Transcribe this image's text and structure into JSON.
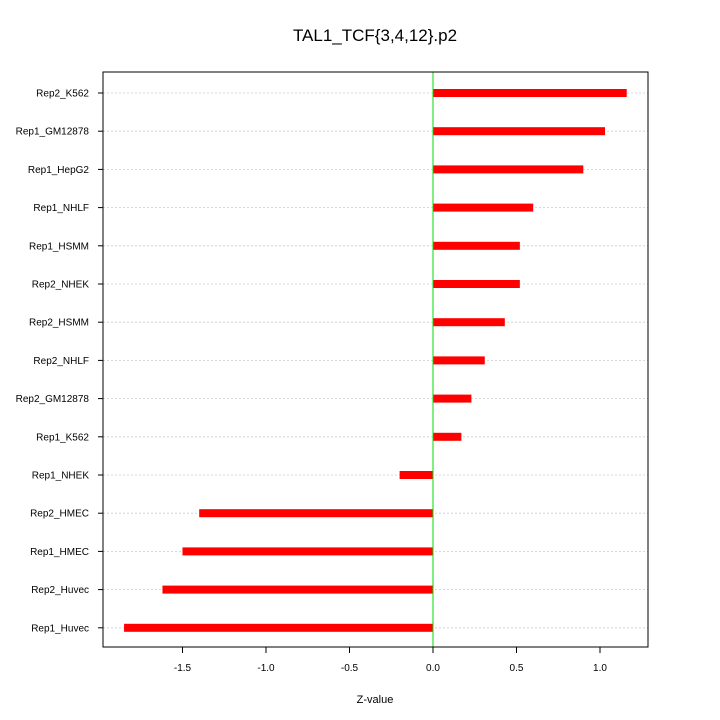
{
  "chart_data": {
    "type": "bar",
    "orientation": "horizontal",
    "title": "TAL1_TCF{3,4,12}.p2",
    "xlabel": "Z-value",
    "ylabel": "",
    "xlim": [
      -1.95,
      1.28
    ],
    "x_ticks": [
      -1.5,
      -1.0,
      -0.5,
      0.0,
      0.5,
      1.0
    ],
    "x_tick_labels": [
      "-1.5",
      "-1.0",
      "-0.5",
      "0.0",
      "0.5",
      "1.0"
    ],
    "categories": [
      "Rep2_K562",
      "Rep1_GM12878",
      "Rep1_HepG2",
      "Rep1_NHLF",
      "Rep1_HSMM",
      "Rep2_NHEK",
      "Rep2_HSMM",
      "Rep2_NHLF",
      "Rep2_GM12878",
      "Rep1_K562",
      "Rep1_NHEK",
      "Rep2_HMEC",
      "Rep1_HMEC",
      "Rep2_Huvec",
      "Rep1_Huvec"
    ],
    "values": [
      1.16,
      1.03,
      0.9,
      0.6,
      0.52,
      0.52,
      0.43,
      0.31,
      0.23,
      0.17,
      -0.2,
      -1.4,
      -1.5,
      -1.62,
      -1.85
    ],
    "bar_color": "#ff0000",
    "zero_line_color": "#00dd00",
    "grid": "horizontal dotted"
  }
}
